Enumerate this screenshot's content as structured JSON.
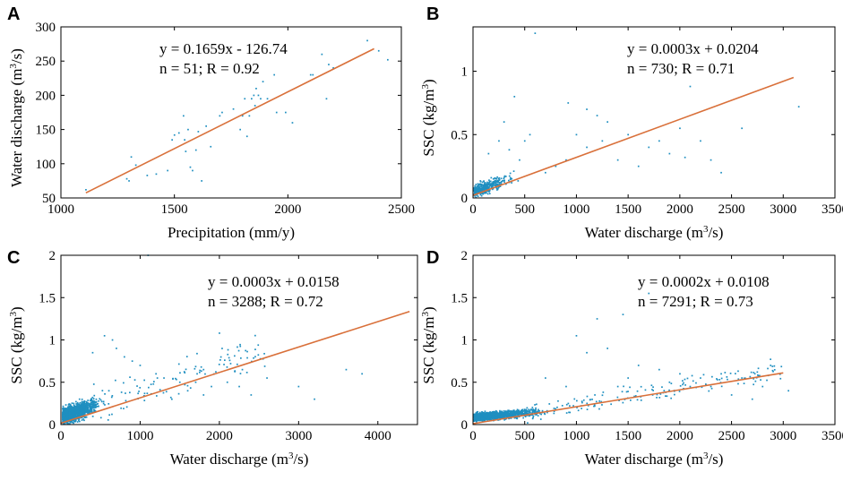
{
  "figure": {
    "fit_color": "#d9703a",
    "point_color": "#1f8fc0"
  },
  "chart_data": [
    {
      "type": "scatter",
      "panel": "A",
      "xlabel": "Precipitation (mm/y)",
      "ylabel": {
        "pre": "Water discharge (m",
        "sup": "3",
        "post": "/s)"
      },
      "xlim": [
        1000,
        2500
      ],
      "ylim": [
        50,
        300
      ],
      "xticks": [
        1000,
        1500,
        2000,
        2500
      ],
      "yticks": [
        50,
        100,
        150,
        200,
        250,
        300
      ],
      "equation": "y = 0.1659x - 126.74",
      "stats": "n = 51; R = 0.92",
      "fit": {
        "x0": 1110,
        "x1": 2380,
        "slope": 0.1659,
        "intercept": -126.74
      },
      "points": [
        [
          1110,
          62
        ],
        [
          1290,
          78
        ],
        [
          1300,
          75
        ],
        [
          1310,
          110
        ],
        [
          1330,
          98
        ],
        [
          1380,
          83
        ],
        [
          1420,
          85
        ],
        [
          1470,
          90
        ],
        [
          1490,
          135
        ],
        [
          1500,
          142
        ],
        [
          1520,
          145
        ],
        [
          1540,
          170
        ],
        [
          1545,
          135
        ],
        [
          1550,
          118
        ],
        [
          1560,
          150
        ],
        [
          1570,
          95
        ],
        [
          1580,
          90
        ],
        [
          1595,
          120
        ],
        [
          1605,
          147
        ],
        [
          1620,
          75
        ],
        [
          1640,
          155
        ],
        [
          1660,
          125
        ],
        [
          1700,
          170
        ],
        [
          1710,
          175
        ],
        [
          1760,
          180
        ],
        [
          1790,
          150
        ],
        [
          1800,
          170
        ],
        [
          1810,
          195
        ],
        [
          1820,
          140
        ],
        [
          1830,
          170
        ],
        [
          1840,
          195
        ],
        [
          1850,
          200
        ],
        [
          1855,
          185
        ],
        [
          1860,
          210
        ],
        [
          1870,
          200
        ],
        [
          1880,
          195
        ],
        [
          1890,
          220
        ],
        [
          1910,
          195
        ],
        [
          1940,
          230
        ],
        [
          1950,
          175
        ],
        [
          1990,
          175
        ],
        [
          2020,
          160
        ],
        [
          2100,
          230
        ],
        [
          2110,
          230
        ],
        [
          2150,
          260
        ],
        [
          2170,
          195
        ],
        [
          2180,
          245
        ],
        [
          2200,
          240
        ],
        [
          2350,
          280
        ],
        [
          2400,
          265
        ],
        [
          2440,
          252
        ]
      ]
    },
    {
      "type": "scatter",
      "panel": "B",
      "xlabel": {
        "pre": "Water discharge (m",
        "sup": "3",
        "post": "/s)"
      },
      "ylabel": {
        "pre": "SSC (kg/m",
        "sup": "3",
        "post": ")"
      },
      "xlim": [
        0,
        3500
      ],
      "ylim": [
        0,
        1.35
      ],
      "xticks": [
        0,
        500,
        1000,
        1500,
        2000,
        2500,
        3000,
        3500
      ],
      "yticks": [
        0,
        0.5,
        1
      ],
      "equation": "y = 0.0003x + 0.0204",
      "stats": "n = 730; R = 0.71",
      "fit": {
        "x0": 0,
        "x1": 3100,
        "slope": 0.0003,
        "intercept": 0.0204
      },
      "points": [
        [
          600,
          1.3
        ],
        [
          920,
          0.75
        ],
        [
          1100,
          0.7
        ],
        [
          2100,
          0.88
        ],
        [
          3150,
          0.72
        ],
        [
          400,
          0.8
        ],
        [
          300,
          0.6
        ],
        [
          500,
          0.45
        ],
        [
          550,
          0.5
        ],
        [
          1200,
          0.65
        ],
        [
          1300,
          0.6
        ],
        [
          1000,
          0.5
        ],
        [
          1500,
          0.5
        ],
        [
          1700,
          0.4
        ],
        [
          2000,
          0.55
        ],
        [
          2200,
          0.45
        ],
        [
          2300,
          0.3
        ],
        [
          2400,
          0.2
        ],
        [
          2050,
          0.32
        ],
        [
          1600,
          0.25
        ],
        [
          1400,
          0.3
        ],
        [
          1100,
          0.4
        ],
        [
          900,
          0.3
        ],
        [
          800,
          0.25
        ],
        [
          700,
          0.2
        ],
        [
          1250,
          0.45
        ],
        [
          1800,
          0.45
        ],
        [
          1900,
          0.35
        ],
        [
          2600,
          0.55
        ],
        [
          250,
          0.45
        ],
        [
          150,
          0.35
        ],
        [
          350,
          0.38
        ],
        [
          450,
          0.3
        ]
      ]
    },
    {
      "type": "scatter",
      "panel": "C",
      "xlabel": {
        "pre": "Water discharge (m",
        "sup": "3",
        "post": "/s)"
      },
      "ylabel": {
        "pre": "SSC (kg/m",
        "sup": "3",
        "post": ")"
      },
      "xlim": [
        0,
        4500
      ],
      "ylim": [
        0,
        2
      ],
      "xticks": [
        0,
        1000,
        2000,
        3000,
        4000
      ],
      "yticks": [
        0,
        0.5,
        1,
        1.5,
        2
      ],
      "equation": "y = 0.0003x + 0.0158",
      "stats": "n = 3288; R = 0.72",
      "fit": {
        "x0": 0,
        "x1": 4400,
        "slope": 0.0003,
        "intercept": 0.0158
      },
      "points": [
        [
          1100,
          2.0
        ],
        [
          2000,
          1.08
        ],
        [
          550,
          1.05
        ],
        [
          650,
          1.0
        ],
        [
          400,
          0.85
        ],
        [
          700,
          0.9
        ],
        [
          800,
          0.8
        ],
        [
          900,
          0.75
        ],
        [
          1000,
          0.7
        ],
        [
          1200,
          0.6
        ],
        [
          1300,
          0.55
        ],
        [
          1500,
          0.5
        ],
        [
          1700,
          0.5
        ],
        [
          1900,
          0.45
        ],
        [
          2100,
          0.5
        ],
        [
          2250,
          0.45
        ],
        [
          2400,
          0.35
        ],
        [
          3000,
          0.45
        ],
        [
          3200,
          0.3
        ],
        [
          3600,
          0.65
        ],
        [
          3800,
          0.6
        ],
        [
          1800,
          0.35
        ],
        [
          1600,
          0.4
        ],
        [
          1400,
          0.3
        ],
        [
          2600,
          0.55
        ]
      ]
    },
    {
      "type": "scatter",
      "panel": "D",
      "xlabel": {
        "pre": "Water discharge (m",
        "sup": "3",
        "post": "/s)"
      },
      "ylabel": {
        "pre": "SSC (kg/m",
        "sup": "3",
        "post": ")"
      },
      "xlim": [
        0,
        3500
      ],
      "ylim": [
        0,
        2
      ],
      "xticks": [
        0,
        500,
        1000,
        1500,
        2000,
        2500,
        3000,
        3500
      ],
      "yticks": [
        0,
        0.5,
        1,
        1.5,
        2
      ],
      "equation": "y = 0.0002x + 0.0108",
      "stats": "n = 7291; R = 0.73",
      "fit": {
        "x0": 0,
        "x1": 3000,
        "slope": 0.0002,
        "intercept": 0.0108
      },
      "points": [
        [
          1700,
          1.55
        ],
        [
          1450,
          1.3
        ],
        [
          1200,
          1.25
        ],
        [
          1000,
          1.05
        ],
        [
          1300,
          0.9
        ],
        [
          1100,
          0.85
        ],
        [
          1600,
          0.7
        ],
        [
          1800,
          0.65
        ],
        [
          2000,
          0.6
        ],
        [
          2200,
          0.55
        ],
        [
          2400,
          0.6
        ],
        [
          2600,
          0.55
        ],
        [
          2800,
          0.45
        ],
        [
          3050,
          0.4
        ],
        [
          2100,
          0.45
        ],
        [
          1900,
          0.5
        ],
        [
          1500,
          0.55
        ],
        [
          900,
          0.45
        ],
        [
          700,
          0.55
        ],
        [
          2500,
          0.35
        ],
        [
          2300,
          0.45
        ],
        [
          1400,
          0.45
        ],
        [
          2700,
          0.3
        ]
      ]
    }
  ]
}
